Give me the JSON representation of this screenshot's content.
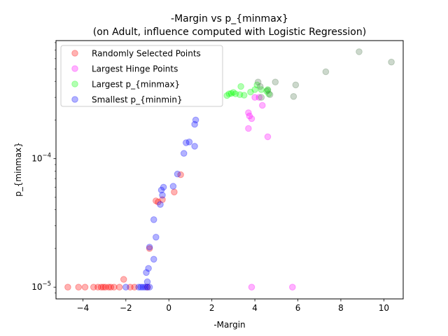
{
  "chart_data": {
    "type": "scatter",
    "title": "-Margin vs p_{minmax}",
    "subtitle": "(on Adult, influence computed with Logistic Regression)",
    "xlabel": "-Margin",
    "ylabel": "p_{minmax}",
    "xlim": [
      -5.25,
      10.9
    ],
    "ylim": [
      8.1e-06,
      0.00083
    ],
    "yscale": "log",
    "x_ticks": [
      -4,
      -2,
      0,
      2,
      4,
      6,
      8,
      10
    ],
    "x_tick_labels": [
      "−4",
      "−2",
      "0",
      "2",
      "4",
      "6",
      "8",
      "10"
    ],
    "y_ticks": [
      1e-05,
      0.0001
    ],
    "y_tick_labels": [
      {
        "base": "10",
        "exp": "−5"
      },
      {
        "base": "10",
        "exp": "−4"
      }
    ],
    "grid": false,
    "legend_position": "top-left",
    "series": [
      {
        "name": "Randomly Selected Points",
        "color": "#ff0000",
        "points": [
          [
            -4.7,
            1e-05
          ],
          [
            -4.2,
            1e-05
          ],
          [
            -3.9,
            1e-05
          ],
          [
            -3.5,
            1e-05
          ],
          [
            -3.3,
            1e-05
          ],
          [
            -3.15,
            1e-05
          ],
          [
            -3.05,
            1e-05
          ],
          [
            -2.95,
            1e-05
          ],
          [
            -2.8,
            1e-05
          ],
          [
            -2.7,
            1e-05
          ],
          [
            -2.55,
            1e-05
          ],
          [
            -2.3,
            1e-05
          ],
          [
            -2.1,
            1.15e-05
          ],
          [
            -1.8,
            1e-05
          ],
          [
            -1.6,
            1e-05
          ],
          [
            -1.0,
            1e-05
          ],
          [
            -0.9,
            2e-05
          ],
          [
            -0.6,
            4.7e-05
          ],
          [
            -0.5,
            4.6e-05
          ],
          [
            -0.3,
            4.8e-05
          ],
          [
            0.25,
            5.5e-05
          ],
          [
            0.55,
            7.5e-05
          ]
        ]
      },
      {
        "name": "Largest Hinge Points",
        "color": "#ff00ff",
        "points": [
          [
            3.7,
            0.000172
          ],
          [
            3.7,
            0.000228
          ],
          [
            3.75,
            0.000215
          ],
          [
            3.85,
            0.000205
          ],
          [
            4.0,
            0.0003
          ],
          [
            4.2,
            0.0003
          ],
          [
            4.35,
            0.00026
          ],
          [
            4.6,
            0.000148
          ],
          [
            3.85,
            1e-05
          ],
          [
            5.75,
            1e-05
          ]
        ]
      },
      {
        "name": "Largest p_{minmax}",
        "color": "#00ff00",
        "points": [
          [
            2.7,
            0.00031
          ],
          [
            2.8,
            0.00032
          ],
          [
            2.9,
            0.000322
          ],
          [
            3.0,
            0.000328
          ],
          [
            3.1,
            0.00032
          ],
          [
            3.3,
            0.000315
          ],
          [
            3.35,
            0.000365
          ],
          [
            3.5,
            0.000312
          ],
          [
            3.8,
            0.00033
          ],
          [
            4.0,
            0.000345
          ],
          [
            4.1,
            0.000375
          ],
          [
            4.3,
            0.000345
          ],
          [
            4.55,
            0.000335
          ],
          [
            4.6,
            0.000345
          ],
          [
            4.65,
            0.00032
          ]
        ]
      },
      {
        "name": "Smallest p_{minmin}",
        "color": "#0000ff",
        "points": [
          [
            -2.0,
            1e-05
          ],
          [
            -1.4,
            1e-05
          ],
          [
            -1.3,
            1e-05
          ],
          [
            -1.2,
            1e-05
          ],
          [
            -1.1,
            1e-05
          ],
          [
            -1.0,
            1e-05
          ],
          [
            -1.0,
            1.1e-05
          ],
          [
            -0.9,
            1e-05
          ],
          [
            -1.05,
            1.3e-05
          ],
          [
            -0.95,
            1.4e-05
          ],
          [
            -0.9,
            2.05e-05
          ],
          [
            -0.7,
            1.65e-05
          ],
          [
            -0.6,
            2.45e-05
          ],
          [
            -0.7,
            3.35e-05
          ],
          [
            -0.4,
            4.4e-05
          ],
          [
            -0.3,
            5.2e-05
          ],
          [
            -0.25,
            6e-05
          ],
          [
            -0.35,
            5.7e-05
          ],
          [
            0.2,
            6.1e-05
          ],
          [
            0.4,
            7.6e-05
          ],
          [
            0.7,
            0.00011
          ],
          [
            0.8,
            0.000133
          ],
          [
            0.95,
            0.000135
          ],
          [
            1.2,
            0.000125
          ],
          [
            1.2,
            0.000185
          ],
          [
            1.25,
            0.0002
          ]
        ]
      },
      {
        "name": "",
        "color": "#557f55",
        "points": [
          [
            4.15,
            0.000395
          ],
          [
            4.25,
            0.000365
          ],
          [
            4.3,
            0.0003
          ],
          [
            4.6,
            0.00034
          ],
          [
            4.7,
            0.000315
          ],
          [
            4.95,
            0.000395
          ],
          [
            5.8,
            0.000305
          ],
          [
            5.9,
            0.000375
          ],
          [
            7.3,
            0.000475
          ],
          [
            8.85,
            0.00068
          ],
          [
            10.35,
            0.000565
          ]
        ]
      }
    ]
  }
}
